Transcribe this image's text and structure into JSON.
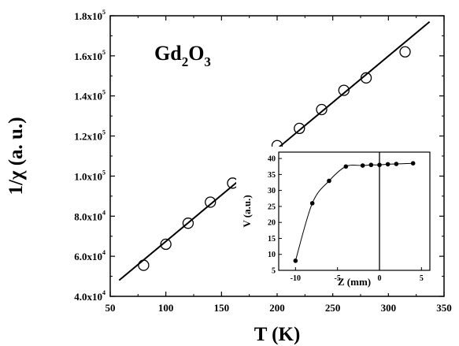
{
  "chart_data": [
    {
      "type": "scatter",
      "annotation": {
        "base": "Gd",
        "sub1": "2",
        "mid": "O",
        "sub2": "3"
      },
      "xlabel": "T (K)",
      "ylabel": "1/χ (a. u.)",
      "xlim": [
        50,
        350
      ],
      "ylim": [
        40000,
        180000
      ],
      "x_ticks": [
        50,
        100,
        150,
        200,
        250,
        300,
        350
      ],
      "y_ticks": [
        {
          "value": 40000,
          "mant": "4.0x10",
          "exp": "4"
        },
        {
          "value": 60000,
          "mant": "6.0x10",
          "exp": "4"
        },
        {
          "value": 80000,
          "mant": "8.0x10",
          "exp": "4"
        },
        {
          "value": 100000,
          "mant": "1.0x10",
          "exp": "5"
        },
        {
          "value": 120000,
          "mant": "1.2x10",
          "exp": "5"
        },
        {
          "value": 140000,
          "mant": "1.4x10",
          "exp": "5"
        },
        {
          "value": 160000,
          "mant": "1.6x10",
          "exp": "5"
        },
        {
          "value": 180000,
          "mant": "1.8x10",
          "exp": "5"
        }
      ],
      "series": [
        {
          "marker": "open-circle",
          "x": [
            80,
            100,
            120,
            140,
            160,
            180,
            200,
            220,
            240,
            260,
            280,
            315
          ],
          "y": [
            55500,
            66000,
            76500,
            87000,
            96500,
            105800,
            115200,
            123800,
            133200,
            142800,
            149000,
            162000
          ]
        }
      ],
      "fit_line": {
        "x": [
          58,
          337
        ],
        "y": [
          48000,
          177000
        ]
      }
    },
    {
      "type": "line",
      "inset": true,
      "xlabel": "Z (mm)",
      "ylabel": "V (a.u.)",
      "xlim": [
        -12,
        6
      ],
      "ylim": [
        5,
        42
      ],
      "x_ticks": [
        -10,
        -5,
        0,
        5
      ],
      "y_ticks": [
        5,
        10,
        15,
        20,
        25,
        30,
        35,
        40
      ],
      "vertical_line_x": 0,
      "series": [
        {
          "marker": "filled-circle",
          "x": [
            -10,
            -8,
            -6,
            -4,
            -2,
            -1,
            0,
            1,
            2,
            4
          ],
          "y": [
            8,
            26,
            33,
            37.5,
            37.8,
            38,
            38,
            38.2,
            38.3,
            38.5
          ]
        }
      ]
    }
  ]
}
